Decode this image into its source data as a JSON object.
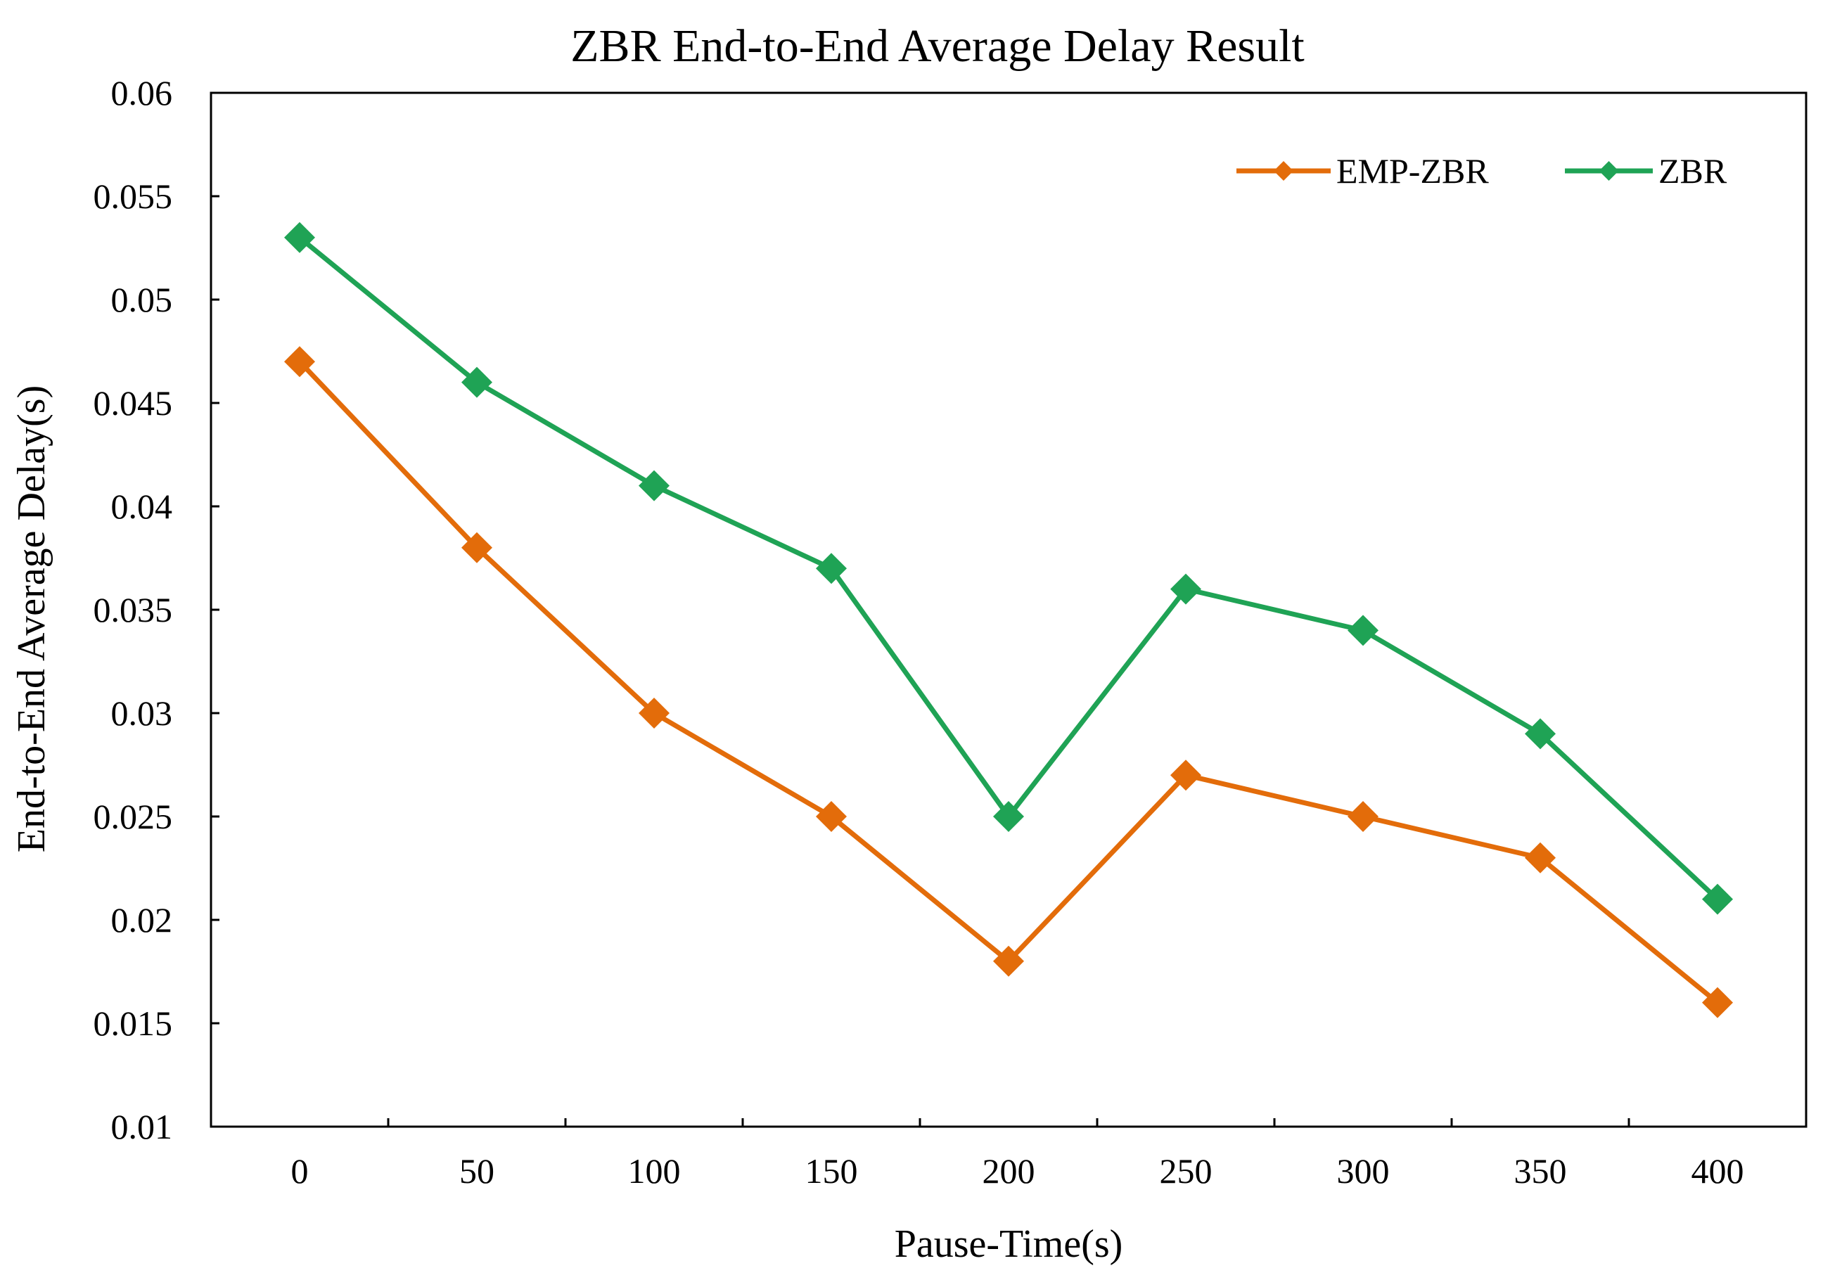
{
  "chart_data": {
    "type": "line",
    "title": "ZBR End-to-End Average Delay Result",
    "xlabel": "Pause-Time(s)",
    "ylabel": "End-to-End Average Delay(s)",
    "categories": [
      "0",
      "50",
      "100",
      "150",
      "200",
      "250",
      "300",
      "350",
      "400"
    ],
    "y_ticks": [
      "0.01",
      "0.015",
      "0.02",
      "0.025",
      "0.03",
      "0.035",
      "0.04",
      "0.045",
      "0.05",
      "0.055",
      "0.06"
    ],
    "ylim": [
      0.01,
      0.06
    ],
    "grid": false,
    "legend_position": "top-right",
    "series": [
      {
        "name": "EMP-ZBR",
        "color": "#E36C0A",
        "marker": "diamond",
        "values": [
          0.047,
          0.038,
          0.03,
          0.025,
          0.018,
          0.027,
          0.025,
          0.023,
          0.016
        ]
      },
      {
        "name": "ZBR",
        "color": "#1FA355",
        "marker": "diamond",
        "values": [
          0.053,
          0.046,
          0.041,
          0.037,
          0.025,
          0.036,
          0.034,
          0.029,
          0.021
        ]
      }
    ]
  }
}
